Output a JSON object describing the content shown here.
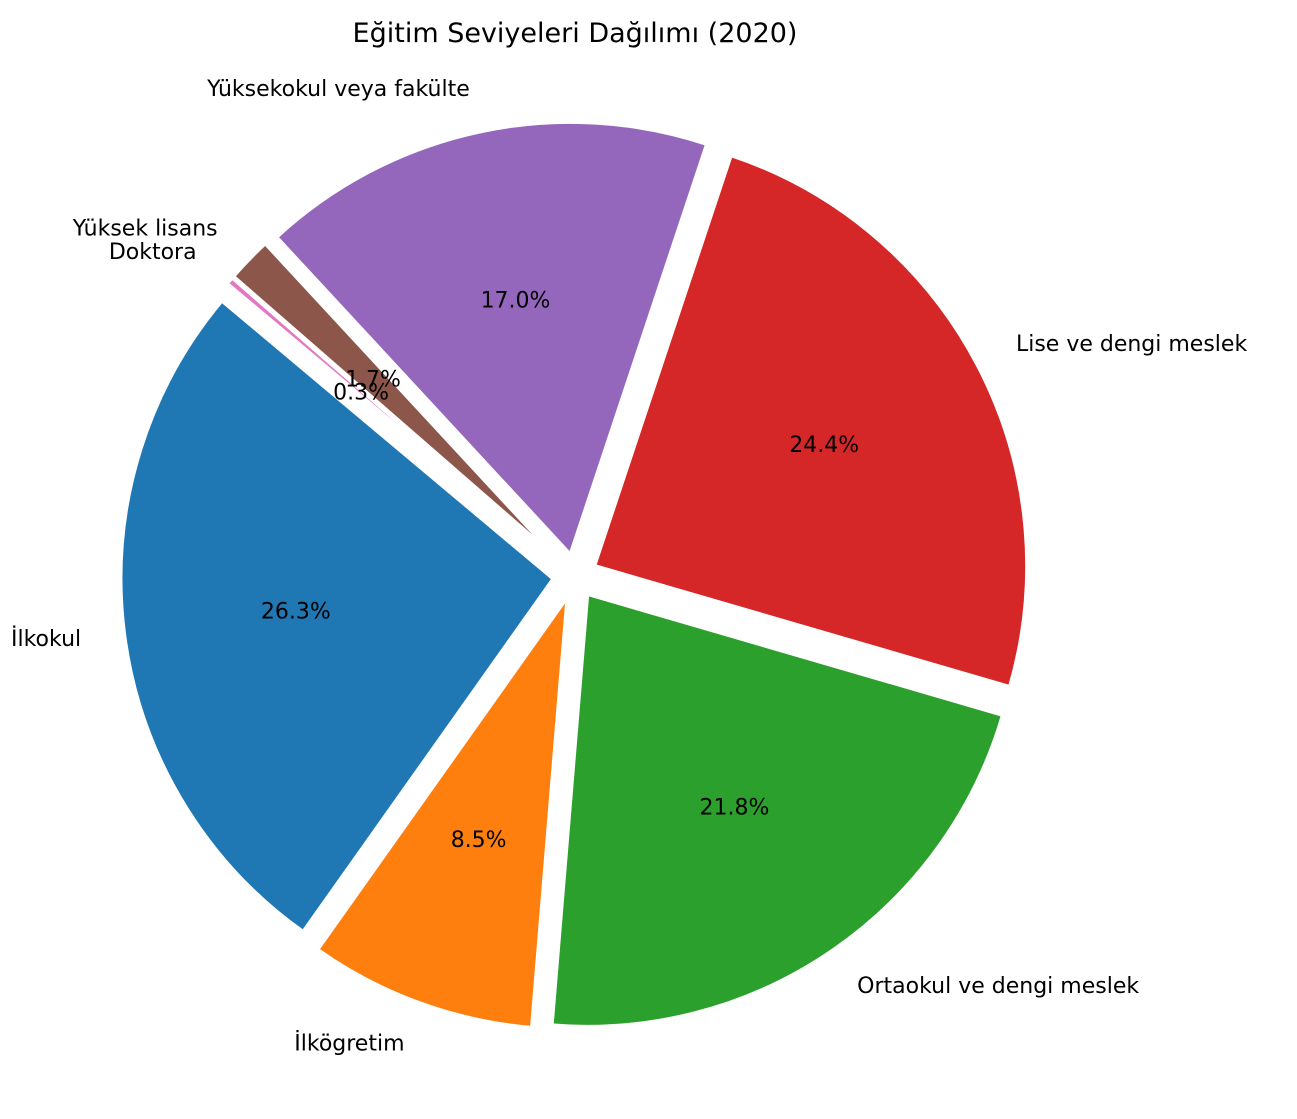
{
  "chart_data": {
    "type": "pie",
    "title": "Eğitim Seviyeleri Dağılımı (2020)",
    "categories": [
      "İlkokul",
      "İlkögretim",
      "Ortaokul ve dengi meslek",
      "Lise ve dengi meslek",
      "Yüksekokul veya fakülte",
      "Yüksek lisans",
      "Doktora"
    ],
    "values": [
      26.3,
      8.5,
      21.8,
      24.4,
      17.0,
      1.7,
      0.3
    ],
    "value_labels": [
      "26.3%",
      "8.5%",
      "21.8%",
      "24.4%",
      "17.0%",
      "1.7%",
      "0.3%"
    ],
    "colors": [
      "#1f77b4",
      "#ff7f0e",
      "#2ca02c",
      "#d62728",
      "#9467bd",
      "#8c564b",
      "#e377c2"
    ],
    "legend": "none"
  }
}
